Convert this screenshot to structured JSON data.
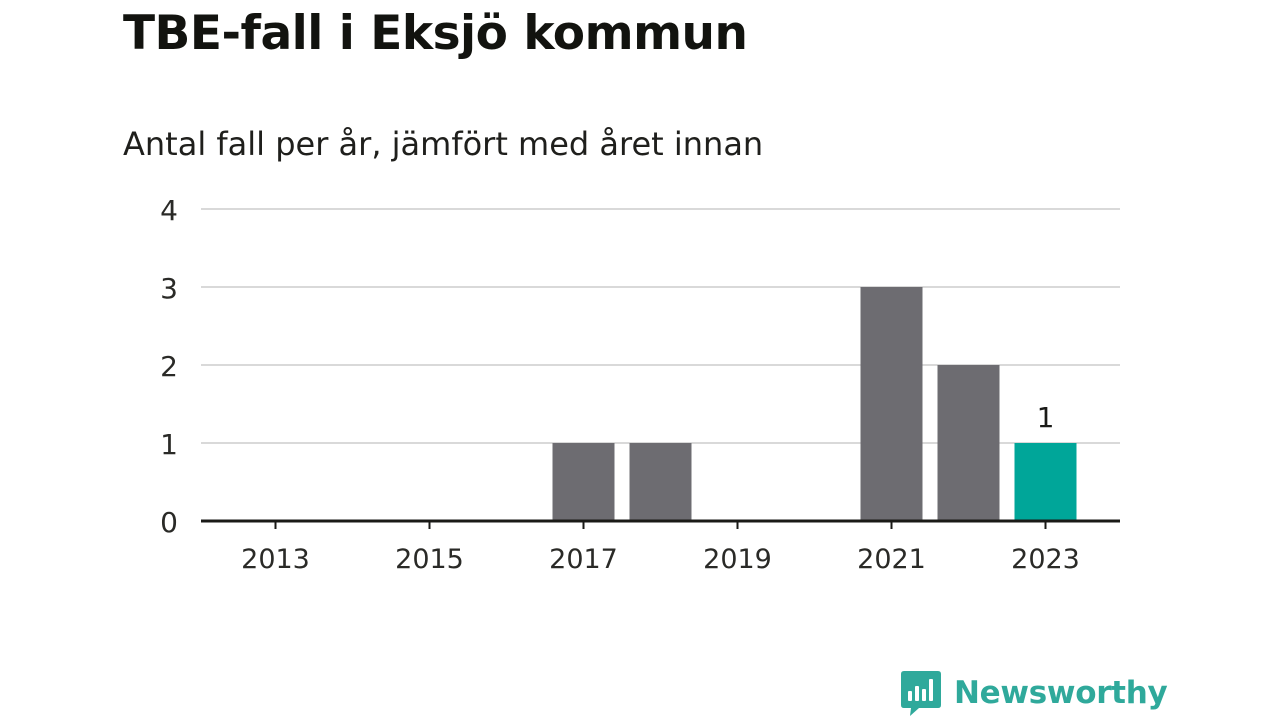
{
  "title": "TBE-fall i Eksjö kommun",
  "subtitle": "Antal fall per år, jämfört med året innan",
  "brand": {
    "name": "Newsworthy",
    "color": "#2fa99b"
  },
  "colors": {
    "bar": "#6d6c71",
    "highlight": "#00a699",
    "grid": "#d9d9d9",
    "axis": "#1a1a17",
    "text": "#1a1a17"
  },
  "chart_data": {
    "type": "bar",
    "categories": [
      "2013",
      "2014",
      "2015",
      "2016",
      "2017",
      "2018",
      "2019",
      "2020",
      "2021",
      "2022",
      "2023"
    ],
    "values": [
      0,
      0,
      0,
      0,
      1,
      1,
      0,
      0,
      3,
      2,
      1
    ],
    "x_tick_labels": [
      "2013",
      "2015",
      "2017",
      "2019",
      "2021",
      "2023"
    ],
    "y_ticks": [
      "0",
      "1",
      "2",
      "3",
      "4"
    ],
    "ylim": [
      0,
      4
    ],
    "highlight_category": "2023",
    "data_labels": [
      {
        "category": "2023",
        "text": "1"
      }
    ],
    "grid": true,
    "xlabel": "",
    "ylabel": ""
  }
}
